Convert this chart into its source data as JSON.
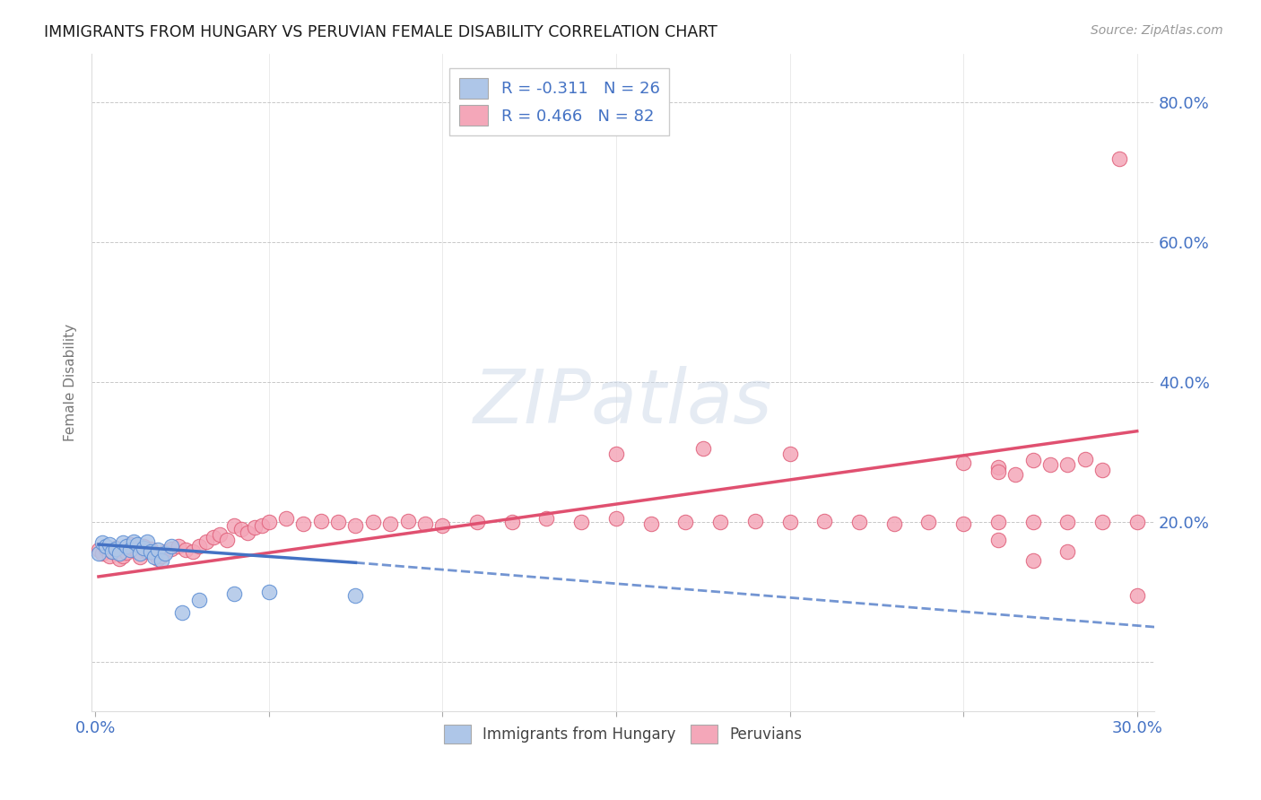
{
  "title": "IMMIGRANTS FROM HUNGARY VS PERUVIAN FEMALE DISABILITY CORRELATION CHART",
  "source": "Source: ZipAtlas.com",
  "tick_color": "#4472c4",
  "ylabel": "Female Disability",
  "xlim": [
    -0.001,
    0.305
  ],
  "ylim": [
    -0.07,
    0.87
  ],
  "xticks": [
    0.0,
    0.05,
    0.1,
    0.15,
    0.2,
    0.25,
    0.3
  ],
  "yticks": [
    0.0,
    0.2,
    0.4,
    0.6,
    0.8
  ],
  "ytick_labels": [
    "",
    "20.0%",
    "40.0%",
    "60.0%",
    "80.0%"
  ],
  "blue_r": "-0.311",
  "blue_n": "26",
  "pink_r": "0.466",
  "pink_n": "82",
  "blue_fill": "#aec6e8",
  "blue_edge": "#5b8dd4",
  "pink_fill": "#f4a7b9",
  "pink_edge": "#e0607a",
  "blue_line": "#4472c4",
  "pink_line": "#e05070",
  "blue_x": [
    0.001,
    0.002,
    0.003,
    0.004,
    0.005,
    0.006,
    0.007,
    0.008,
    0.009,
    0.01,
    0.011,
    0.012,
    0.013,
    0.014,
    0.015,
    0.016,
    0.017,
    0.018,
    0.019,
    0.02,
    0.022,
    0.025,
    0.03,
    0.04,
    0.05,
    0.075
  ],
  "blue_y": [
    0.155,
    0.17,
    0.165,
    0.168,
    0.158,
    0.162,
    0.155,
    0.17,
    0.165,
    0.16,
    0.172,
    0.168,
    0.155,
    0.163,
    0.172,
    0.158,
    0.15,
    0.16,
    0.145,
    0.155,
    0.165,
    0.07,
    0.088,
    0.098,
    0.1,
    0.095
  ],
  "pink_x": [
    0.001,
    0.002,
    0.003,
    0.004,
    0.005,
    0.006,
    0.007,
    0.008,
    0.009,
    0.01,
    0.011,
    0.012,
    0.013,
    0.014,
    0.015,
    0.016,
    0.017,
    0.018,
    0.019,
    0.02,
    0.022,
    0.024,
    0.026,
    0.028,
    0.03,
    0.032,
    0.034,
    0.036,
    0.038,
    0.04,
    0.042,
    0.044,
    0.046,
    0.048,
    0.05,
    0.055,
    0.06,
    0.065,
    0.07,
    0.075,
    0.08,
    0.085,
    0.09,
    0.095,
    0.1,
    0.11,
    0.12,
    0.13,
    0.14,
    0.15,
    0.16,
    0.17,
    0.18,
    0.19,
    0.2,
    0.21,
    0.22,
    0.23,
    0.24,
    0.25,
    0.26,
    0.27,
    0.28,
    0.29,
    0.3,
    0.26,
    0.27,
    0.28,
    0.29,
    0.265,
    0.275,
    0.285,
    0.26,
    0.15,
    0.175,
    0.2,
    0.25,
    0.26,
    0.27,
    0.28,
    0.295,
    0.3
  ],
  "pink_y": [
    0.16,
    0.155,
    0.162,
    0.152,
    0.158,
    0.163,
    0.148,
    0.152,
    0.157,
    0.168,
    0.162,
    0.158,
    0.15,
    0.165,
    0.158,
    0.162,
    0.155,
    0.148,
    0.152,
    0.158,
    0.162,
    0.165,
    0.16,
    0.158,
    0.165,
    0.172,
    0.178,
    0.182,
    0.175,
    0.195,
    0.19,
    0.185,
    0.192,
    0.195,
    0.2,
    0.205,
    0.198,
    0.202,
    0.2,
    0.195,
    0.2,
    0.198,
    0.202,
    0.198,
    0.195,
    0.2,
    0.2,
    0.205,
    0.2,
    0.205,
    0.198,
    0.2,
    0.2,
    0.202,
    0.2,
    0.202,
    0.2,
    0.198,
    0.2,
    0.198,
    0.2,
    0.2,
    0.2,
    0.2,
    0.2,
    0.278,
    0.288,
    0.282,
    0.275,
    0.268,
    0.282,
    0.29,
    0.272,
    0.298,
    0.305,
    0.298,
    0.285,
    0.175,
    0.145,
    0.158,
    0.72,
    0.095
  ],
  "blue_line_xstart": 0.001,
  "blue_line_xsolid_end": 0.075,
  "blue_line_xdash_end": 0.305,
  "pink_line_xstart": 0.001,
  "pink_line_xend": 0.3,
  "pink_line_ystart": 0.122,
  "pink_line_yend": 0.33,
  "blue_line_ystart": 0.168,
  "blue_line_ysolid_end": 0.142,
  "blue_line_ydash_end": 0.05,
  "watermark": "ZIPatlas",
  "background_color": "#ffffff",
  "grid_color": "#c8c8c8"
}
